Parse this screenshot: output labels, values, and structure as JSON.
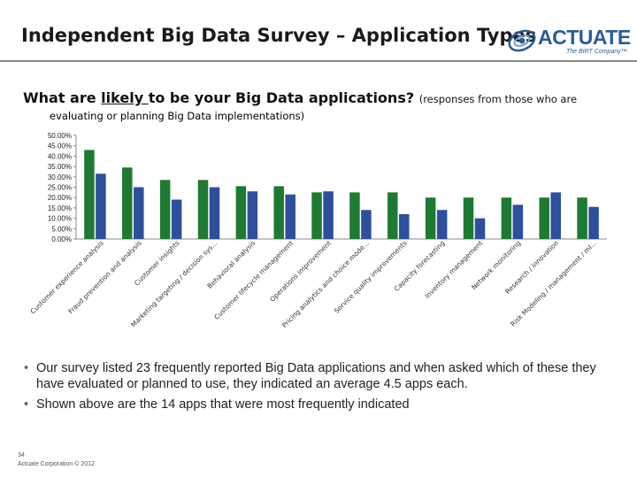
{
  "slide": {
    "title": "Independent Big Data Survey – Application Types",
    "logo": {
      "name": "ACTUATE",
      "tagline": "The BIRT Company™"
    }
  },
  "question": {
    "prefix": "What are ",
    "underlined": "likely ",
    "rest": "to be your Big Data applications?",
    "note_line1": "(responses from those who are",
    "note_line2": "evaluating or planning Big Data implementations)"
  },
  "chart_data": {
    "type": "bar",
    "title": "",
    "xlabel": "",
    "ylabel": "",
    "ylim": [
      0,
      50
    ],
    "yticks": [
      "0.00%",
      "5.00%",
      "10.00%",
      "15.00%",
      "20.00%",
      "25.00%",
      "30.00%",
      "35.00%",
      "40.00%",
      "45.00%",
      "50.00%"
    ],
    "grid": false,
    "legend": "none",
    "series_colors": [
      "#1e7a32",
      "#2e4e9e"
    ],
    "categories": [
      "Customer experience analysis",
      "Fraud prevention and analysis",
      "Customer insights",
      "Marketing targeting / decision sys...",
      "Behavioral analysis",
      "Customer lifecycle management",
      "Operations improvement",
      "Pricing analytics and choice mode...",
      "Service quality improvements",
      "Capacity forecasting",
      "Inventory management",
      "Network monitoring",
      "Research / innovation",
      "Risk Modeling / management / ml..."
    ],
    "series": [
      {
        "values": [
          43,
          34.5,
          28.5,
          28.5,
          25.5,
          25.5,
          22.5,
          22.5,
          22.5,
          20,
          20,
          20,
          20,
          20
        ]
      },
      {
        "values": [
          31.5,
          25,
          19,
          25,
          23,
          21.5,
          23,
          14,
          12,
          14,
          10,
          16.5,
          22.5,
          15.5
        ]
      }
    ]
  },
  "bullets": [
    "Our survey listed 23 frequently reported Big Data applications and when asked which of these they have evaluated or planned to use, they indicated an average 4.5 apps each.",
    "Shown above are the 14 apps that were most frequently indicated"
  ],
  "footer": {
    "page": "34",
    "copyright": "Actuate Corporation © 2012"
  }
}
